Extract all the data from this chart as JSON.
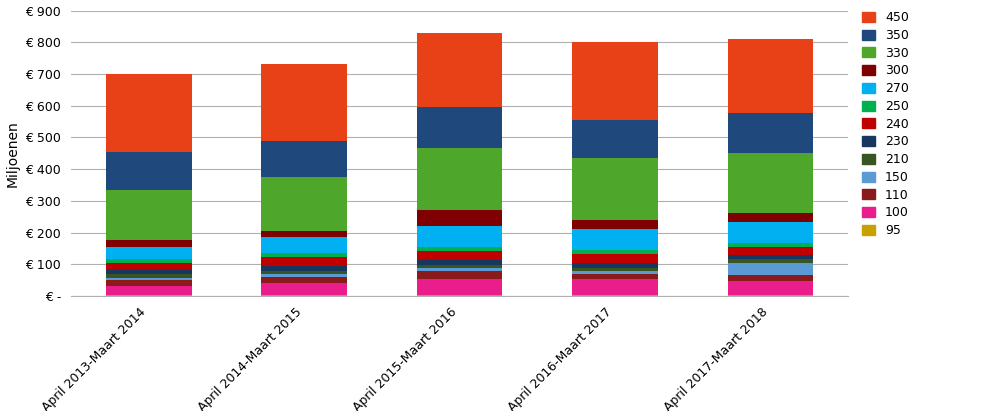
{
  "categories": [
    "April 2013-Maart 2014",
    "April 2014-Maart 2015",
    "April 2015-Maart 2016",
    "April 2016-Maart 2017",
    "April 2017-Maart 2018"
  ],
  "segments": [
    {
      "label": "95",
      "color": "#c8a000",
      "values": [
        2,
        2,
        2,
        2,
        2
      ]
    },
    {
      "label": "100",
      "color": "#e91e8c",
      "values": [
        30,
        40,
        50,
        50,
        45
      ]
    },
    {
      "label": "110",
      "color": "#8B1a1a",
      "values": [
        18,
        18,
        28,
        18,
        18
      ]
    },
    {
      "label": "150",
      "color": "#5b9bd5",
      "values": [
        8,
        8,
        8,
        8,
        40
      ]
    },
    {
      "label": "210",
      "color": "#375623",
      "values": [
        10,
        10,
        10,
        10,
        10
      ]
    },
    {
      "label": "230",
      "color": "#17375e",
      "values": [
        15,
        15,
        15,
        15,
        15
      ]
    },
    {
      "label": "240",
      "color": "#c00000",
      "values": [
        20,
        30,
        30,
        30,
        25
      ]
    },
    {
      "label": "250",
      "color": "#00b050",
      "values": [
        12,
        12,
        12,
        12,
        12
      ]
    },
    {
      "label": "270",
      "color": "#00b0f0",
      "values": [
        40,
        50,
        65,
        65,
        65
      ]
    },
    {
      "label": "300",
      "color": "#7f0000",
      "values": [
        20,
        20,
        50,
        30,
        30
      ]
    },
    {
      "label": "330",
      "color": "#4ea72a",
      "values": [
        160,
        170,
        195,
        195,
        190
      ]
    },
    {
      "label": "350",
      "color": "#1f497d",
      "values": [
        120,
        115,
        130,
        120,
        125
      ]
    },
    {
      "label": "450",
      "color": "#e84118",
      "values": [
        245,
        240,
        235,
        245,
        233
      ]
    }
  ],
  "ylabel": "Miljoenen",
  "ylim": [
    0,
    900
  ],
  "yticks": [
    0,
    100,
    200,
    300,
    400,
    500,
    600,
    700,
    800,
    900
  ],
  "ytick_labels": [
    "€ -",
    "€ 100",
    "€ 200",
    "€ 300",
    "€ 400",
    "€ 500",
    "€ 600",
    "€ 700",
    "€ 800",
    "€ 900"
  ],
  "background_color": "#ffffff",
  "grid_color": "#b0b0b0",
  "bar_width": 0.55
}
